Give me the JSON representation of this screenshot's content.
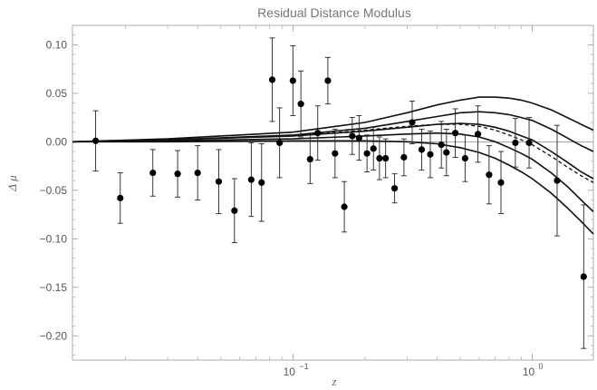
{
  "chart_data": {
    "type": "scatter",
    "title": "Residual Distance Modulus",
    "xlabel": "z",
    "ylabel": "Δ μ",
    "x_scale": "log",
    "xlim": [
      0.012,
      1.8
    ],
    "ylim": [
      -0.225,
      0.12
    ],
    "x_ticks": [
      {
        "value": 0.1,
        "label": "10",
        "exp": "−1"
      },
      {
        "value": 1,
        "label": "10",
        "exp": "0"
      }
    ],
    "y_ticks": [
      {
        "value": 0.1,
        "label": "0.10"
      },
      {
        "value": 0.05,
        "label": "0.05"
      },
      {
        "value": 0.0,
        "label": "0.00"
      },
      {
        "value": -0.05,
        "label": "−0.05"
      },
      {
        "value": -0.1,
        "label": "−0.10"
      },
      {
        "value": -0.15,
        "label": "−0.15"
      },
      {
        "value": -0.2,
        "label": "−0.20"
      }
    ],
    "reference_line": 0,
    "grid": false,
    "points": [
      {
        "x": 0.015,
        "y": 0.001,
        "err": 0.031
      },
      {
        "x": 0.019,
        "y": -0.058,
        "err": 0.026
      },
      {
        "x": 0.026,
        "y": -0.032,
        "err": 0.024
      },
      {
        "x": 0.033,
        "y": -0.033,
        "err": 0.024
      },
      {
        "x": 0.04,
        "y": -0.032,
        "err": 0.028
      },
      {
        "x": 0.049,
        "y": -0.041,
        "err": 0.033
      },
      {
        "x": 0.057,
        "y": -0.071,
        "err": 0.033
      },
      {
        "x": 0.067,
        "y": -0.039,
        "err": 0.038
      },
      {
        "x": 0.074,
        "y": -0.042,
        "err": 0.04
      },
      {
        "x": 0.082,
        "y": 0.064,
        "err": 0.043
      },
      {
        "x": 0.088,
        "y": -0.001,
        "err": 0.036
      },
      {
        "x": 0.1,
        "y": 0.063,
        "err": 0.036
      },
      {
        "x": 0.108,
        "y": 0.039,
        "err": 0.034
      },
      {
        "x": 0.118,
        "y": -0.018,
        "err": 0.025
      },
      {
        "x": 0.127,
        "y": 0.009,
        "err": 0.028
      },
      {
        "x": 0.14,
        "y": 0.063,
        "err": 0.024
      },
      {
        "x": 0.15,
        "y": -0.012,
        "err": 0.025
      },
      {
        "x": 0.164,
        "y": -0.067,
        "err": 0.026
      },
      {
        "x": 0.177,
        "y": 0.006,
        "err": 0.019
      },
      {
        "x": 0.189,
        "y": 0.004,
        "err": 0.023
      },
      {
        "x": 0.204,
        "y": -0.012,
        "err": 0.019
      },
      {
        "x": 0.217,
        "y": -0.007,
        "err": 0.022
      },
      {
        "x": 0.23,
        "y": -0.017,
        "err": 0.022
      },
      {
        "x": 0.244,
        "y": -0.017,
        "err": 0.02
      },
      {
        "x": 0.266,
        "y": -0.048,
        "err": 0.015
      },
      {
        "x": 0.291,
        "y": -0.016,
        "err": 0.019
      },
      {
        "x": 0.315,
        "y": 0.02,
        "err": 0.022
      },
      {
        "x": 0.345,
        "y": -0.008,
        "err": 0.021
      },
      {
        "x": 0.375,
        "y": -0.013,
        "err": 0.024
      },
      {
        "x": 0.417,
        "y": -0.003,
        "err": 0.024
      },
      {
        "x": 0.438,
        "y": -0.011,
        "err": 0.024
      },
      {
        "x": 0.477,
        "y": 0.009,
        "err": 0.025
      },
      {
        "x": 0.524,
        "y": -0.017,
        "err": 0.024
      },
      {
        "x": 0.593,
        "y": 0.008,
        "err": 0.029
      },
      {
        "x": 0.66,
        "y": -0.034,
        "err": 0.03
      },
      {
        "x": 0.74,
        "y": -0.042,
        "err": 0.032
      },
      {
        "x": 0.85,
        "y": -0.001,
        "err": 0.025
      },
      {
        "x": 0.97,
        "y": -0.001,
        "err": 0.026
      },
      {
        "x": 1.27,
        "y": -0.04,
        "err": 0.057
      },
      {
        "x": 1.64,
        "y": -0.139,
        "err": 0.074
      }
    ],
    "curves": [
      {
        "style": "solid",
        "values": [
          [
            0.012,
            0.0
          ],
          [
            0.03,
            0.003
          ],
          [
            0.1,
            0.01
          ],
          [
            0.2,
            0.02
          ],
          [
            0.3,
            0.03
          ],
          [
            0.4,
            0.038
          ],
          [
            0.5,
            0.043
          ],
          [
            0.6,
            0.046
          ],
          [
            0.7,
            0.046
          ],
          [
            0.8,
            0.045
          ],
          [
            0.9,
            0.043
          ],
          [
            1.0,
            0.04
          ],
          [
            1.2,
            0.033
          ],
          [
            1.4,
            0.025
          ],
          [
            1.6,
            0.018
          ],
          [
            1.8,
            0.012
          ]
        ]
      },
      {
        "style": "solid",
        "values": [
          [
            0.012,
            0.0
          ],
          [
            0.03,
            0.002
          ],
          [
            0.1,
            0.007
          ],
          [
            0.2,
            0.014
          ],
          [
            0.3,
            0.021
          ],
          [
            0.4,
            0.026
          ],
          [
            0.5,
            0.03
          ],
          [
            0.6,
            0.031
          ],
          [
            0.7,
            0.03
          ],
          [
            0.8,
            0.028
          ],
          [
            0.9,
            0.025
          ],
          [
            1.0,
            0.022
          ],
          [
            1.2,
            0.013
          ],
          [
            1.4,
            0.004
          ],
          [
            1.6,
            -0.004
          ],
          [
            1.8,
            -0.01
          ]
        ]
      },
      {
        "style": "solid",
        "values": [
          [
            0.012,
            0.0
          ],
          [
            0.03,
            0.002
          ],
          [
            0.1,
            0.006
          ],
          [
            0.2,
            0.011
          ],
          [
            0.3,
            0.015
          ],
          [
            0.4,
            0.018
          ],
          [
            0.5,
            0.019
          ],
          [
            0.6,
            0.018
          ],
          [
            0.7,
            0.015
          ],
          [
            0.8,
            0.011
          ],
          [
            0.9,
            0.006
          ],
          [
            1.0,
            0.002
          ],
          [
            1.2,
            -0.01
          ],
          [
            1.4,
            -0.021
          ],
          [
            1.6,
            -0.031
          ],
          [
            1.8,
            -0.038
          ]
        ]
      },
      {
        "style": "dashed",
        "values": [
          [
            0.012,
            0.0
          ],
          [
            0.03,
            0.002
          ],
          [
            0.1,
            0.006
          ],
          [
            0.2,
            0.012
          ],
          [
            0.3,
            0.016
          ],
          [
            0.4,
            0.018
          ],
          [
            0.5,
            0.018
          ],
          [
            0.6,
            0.016
          ],
          [
            0.7,
            0.012
          ],
          [
            0.8,
            0.007
          ],
          [
            0.9,
            0.002
          ],
          [
            1.0,
            -0.003
          ],
          [
            1.2,
            -0.015
          ],
          [
            1.4,
            -0.026
          ],
          [
            1.6,
            -0.035
          ],
          [
            1.8,
            -0.042
          ]
        ]
      },
      {
        "style": "solid",
        "values": [
          [
            0.012,
            0.0
          ],
          [
            0.03,
            0.001
          ],
          [
            0.1,
            0.003
          ],
          [
            0.2,
            0.006
          ],
          [
            0.3,
            0.008
          ],
          [
            0.4,
            0.009
          ],
          [
            0.5,
            0.008
          ],
          [
            0.6,
            0.005
          ],
          [
            0.7,
            0.0
          ],
          [
            0.8,
            -0.006
          ],
          [
            0.9,
            -0.012
          ],
          [
            1.0,
            -0.018
          ],
          [
            1.2,
            -0.032
          ],
          [
            1.4,
            -0.046
          ],
          [
            1.6,
            -0.06
          ],
          [
            1.8,
            -0.072
          ]
        ]
      },
      {
        "style": "solid",
        "values": [
          [
            0.012,
            0.0
          ],
          [
            0.03,
            0.0
          ],
          [
            0.1,
            0.001
          ],
          [
            0.2,
            0.001
          ],
          [
            0.3,
            0.0
          ],
          [
            0.4,
            -0.002
          ],
          [
            0.5,
            -0.006
          ],
          [
            0.6,
            -0.011
          ],
          [
            0.7,
            -0.017
          ],
          [
            0.8,
            -0.024
          ],
          [
            0.9,
            -0.031
          ],
          [
            1.0,
            -0.038
          ],
          [
            1.2,
            -0.053
          ],
          [
            1.4,
            -0.068
          ],
          [
            1.6,
            -0.082
          ],
          [
            1.8,
            -0.095
          ]
        ]
      }
    ]
  }
}
